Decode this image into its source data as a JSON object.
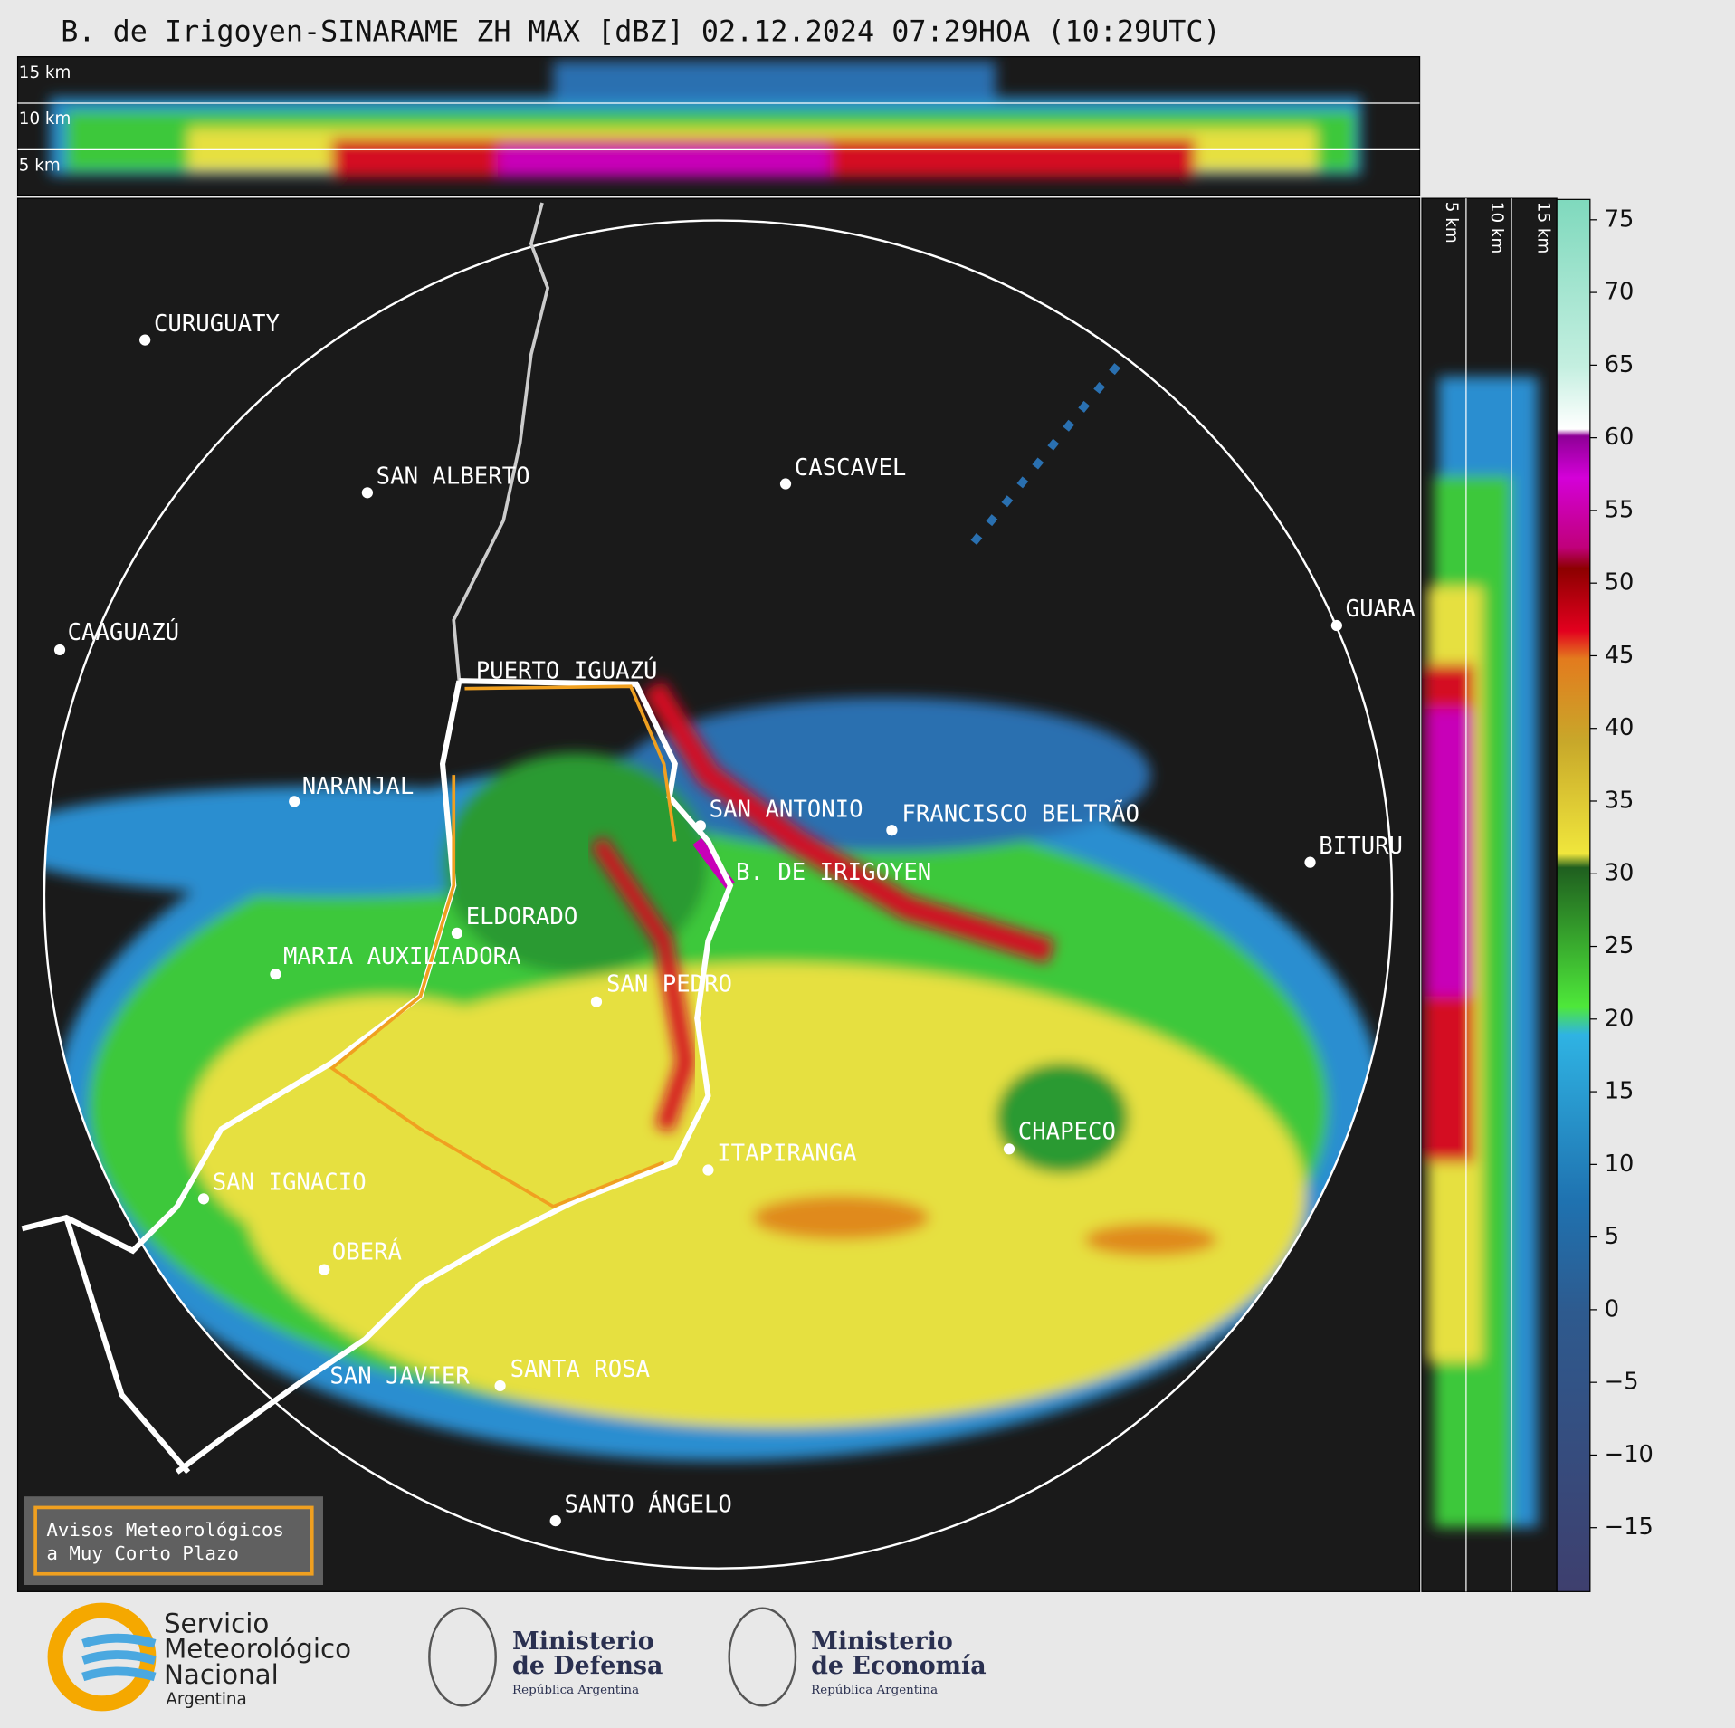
{
  "title": "B. de Irigoyen-SINARAME ZH MAX [dBZ] 02.12.2024 07:29HOA (10:29UTC)",
  "top_panel": {
    "height_labels": [
      "15 km",
      "10 km",
      "5 km"
    ]
  },
  "side_panel": {
    "height_labels": [
      "5 km",
      "10 km",
      "15 km"
    ]
  },
  "cities": [
    "CURUGUATY",
    "SAN ALBERTO",
    "CASCAVEL",
    "CAAGUAZÚ",
    "GUARA",
    "PUERTO IGUAZÚ",
    "NARANJAL",
    "SAN ANTONIO",
    "FRANCISCO BELTRÃO",
    "BITURU",
    "B. DE IRIGOYEN",
    "ELDORADO",
    "MARIA AUXILIADORA",
    "SAN PEDRO",
    "CHAPECO",
    "ITAPIRANGA",
    "SAN IGNACIO",
    "OBERÁ",
    "SAN JAVIER",
    "SANTA ROSA",
    "SANTO ÁNGELO"
  ],
  "warning_box": {
    "lines": [
      "Avisos Meteorológicos",
      "a Muy Corto Plazo"
    ]
  },
  "logos": {
    "smn": [
      "Servicio",
      "Meteorológico",
      "Nacional",
      "Argentina"
    ],
    "defensa": [
      "Ministerio",
      "de Defensa",
      "República Argentina"
    ],
    "economia": [
      "Ministerio",
      "de Economía",
      "República Argentina"
    ]
  },
  "colorbar": {
    "lim": [
      -19.4,
      76.4
    ],
    "ticks": [
      75,
      70,
      65,
      60,
      55,
      50,
      45,
      40,
      35,
      30,
      25,
      20,
      15,
      10,
      5,
      0,
      {
        "value": -5,
        "label": "−5"
      },
      {
        "value": -10,
        "label": "−10"
      },
      {
        "value": -15,
        "label": "−15"
      }
    ]
  }
}
